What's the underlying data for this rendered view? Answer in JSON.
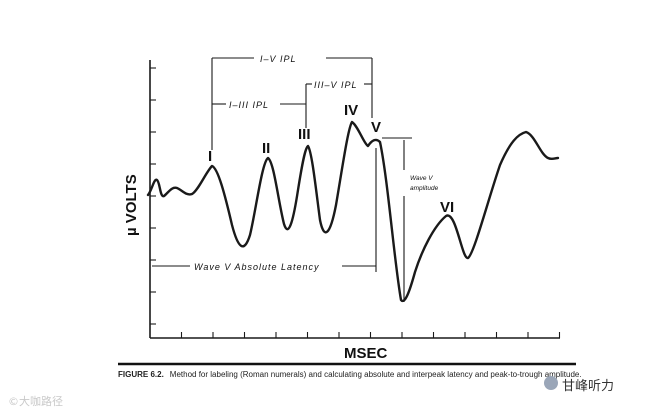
{
  "chart_data": {
    "type": "line",
    "title": "",
    "xlabel": "MSEC",
    "ylabel": "µ VOLTS",
    "grid": false,
    "legend": "none",
    "peaks": [
      {
        "label": "I"
      },
      {
        "label": "II"
      },
      {
        "label": "III"
      },
      {
        "label": "IV"
      },
      {
        "label": "V"
      },
      {
        "label": "VI"
      }
    ],
    "annotations": {
      "i_v_ipl": "I–V IPL",
      "i_iii_ipl": "I–III IPL",
      "iii_v_ipl": "III–V IPL",
      "absolute_latency": "Wave V Absolute Latency",
      "amplitude_line1": "Wave V",
      "amplitude_line2": "amplitude"
    }
  },
  "caption": {
    "figure": "FIGURE 6.2.",
    "text": "Method for labeling (Roman numerals) and calculating absolute and interpeak latency and peak-to-trough amplitude."
  },
  "watermark": {
    "left": "©大咖路径",
    "right": "甘峰听力"
  }
}
